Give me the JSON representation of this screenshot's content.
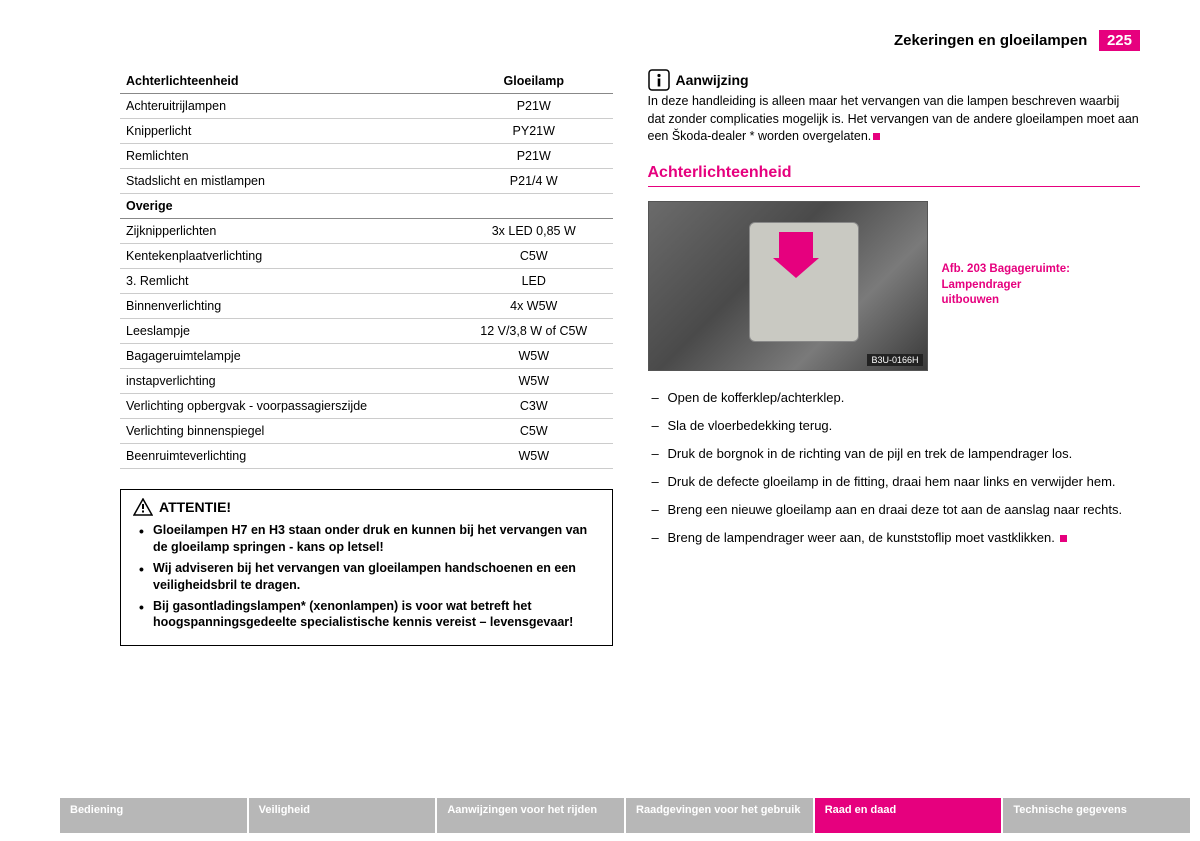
{
  "header": {
    "title": "Zekeringen en gloeilampen",
    "page": "225"
  },
  "table": {
    "headers": [
      "Achterlichteenheid",
      "Gloeilamp"
    ],
    "rows_a": [
      [
        "Achteruitrijlampen",
        "P21W"
      ],
      [
        "Knipperlicht",
        "PY21W"
      ],
      [
        "Remlichten",
        "P21W"
      ],
      [
        "Stadslicht en mistlampen",
        "P21/4 W"
      ]
    ],
    "section_b": "Overige",
    "rows_b": [
      [
        "Zijknipperlichten",
        "3x LED 0,85 W"
      ],
      [
        "Kentekenplaatverlichting",
        "C5W"
      ],
      [
        "3. Remlicht",
        "LED"
      ],
      [
        "Binnenverlichting",
        "4x W5W"
      ],
      [
        "Leeslampje",
        "12 V/3,8 W of C5W"
      ],
      [
        "Bagageruimtelampje",
        "W5W"
      ],
      [
        "instapverlichting",
        "W5W"
      ],
      [
        "Verlichting opbergvak - voorpassagierszijde",
        "C3W"
      ],
      [
        "Verlichting binnenspiegel",
        "C5W"
      ],
      [
        "Beenruimteverlichting",
        "W5W"
      ]
    ]
  },
  "warning": {
    "title": "ATTENTIE!",
    "items": [
      "Gloeilampen H7 en H3 staan onder druk en kunnen bij het vervangen van de gloeilamp springen - kans op letsel!",
      "Wij adviseren bij het vervangen van gloeilampen handschoenen en een veiligheidsbril te dragen.",
      "Bij gasontladingslampen* (xenonlampen) is voor wat betreft het hoogspanningsgedeelte specialistische kennis vereist – levensgevaar!"
    ]
  },
  "note": {
    "title": "Aanwijzing",
    "text": "In deze handleiding is alleen maar het vervangen van die lampen beschreven waarbij dat zonder complicaties mogelijk is. Het vervangen van de andere gloeilampen moet aan een Škoda-dealer * worden overgelaten."
  },
  "section_heading": "Achterlichteenheid",
  "figure": {
    "tag": "B3U-0166H",
    "caption": "Afb. 203  Bagageruimte: Lampendrager uitbouwen"
  },
  "steps": [
    "Open de kofferklep/achterklep.",
    "Sla de vloerbedekking terug.",
    "Druk de borgnok in de richting van de pijl en trek de lampendrager los.",
    "Druk de defecte gloeilamp in de fitting, draai hem naar links en verwijder hem.",
    "Breng een nieuwe gloeilamp aan en draai deze tot aan de aanslag naar rechts.",
    "Breng de lampendrager weer aan, de kunststoflip moet vastklikken."
  ],
  "footer": {
    "tabs": [
      "Bediening",
      "Veiligheid",
      "Aanwijzingen voor het rijden",
      "Raadgevingen voor het gebruik",
      "Raad en daad",
      "Technische gegevens"
    ],
    "active_index": 4
  },
  "colors": {
    "accent": "#e6007e"
  }
}
